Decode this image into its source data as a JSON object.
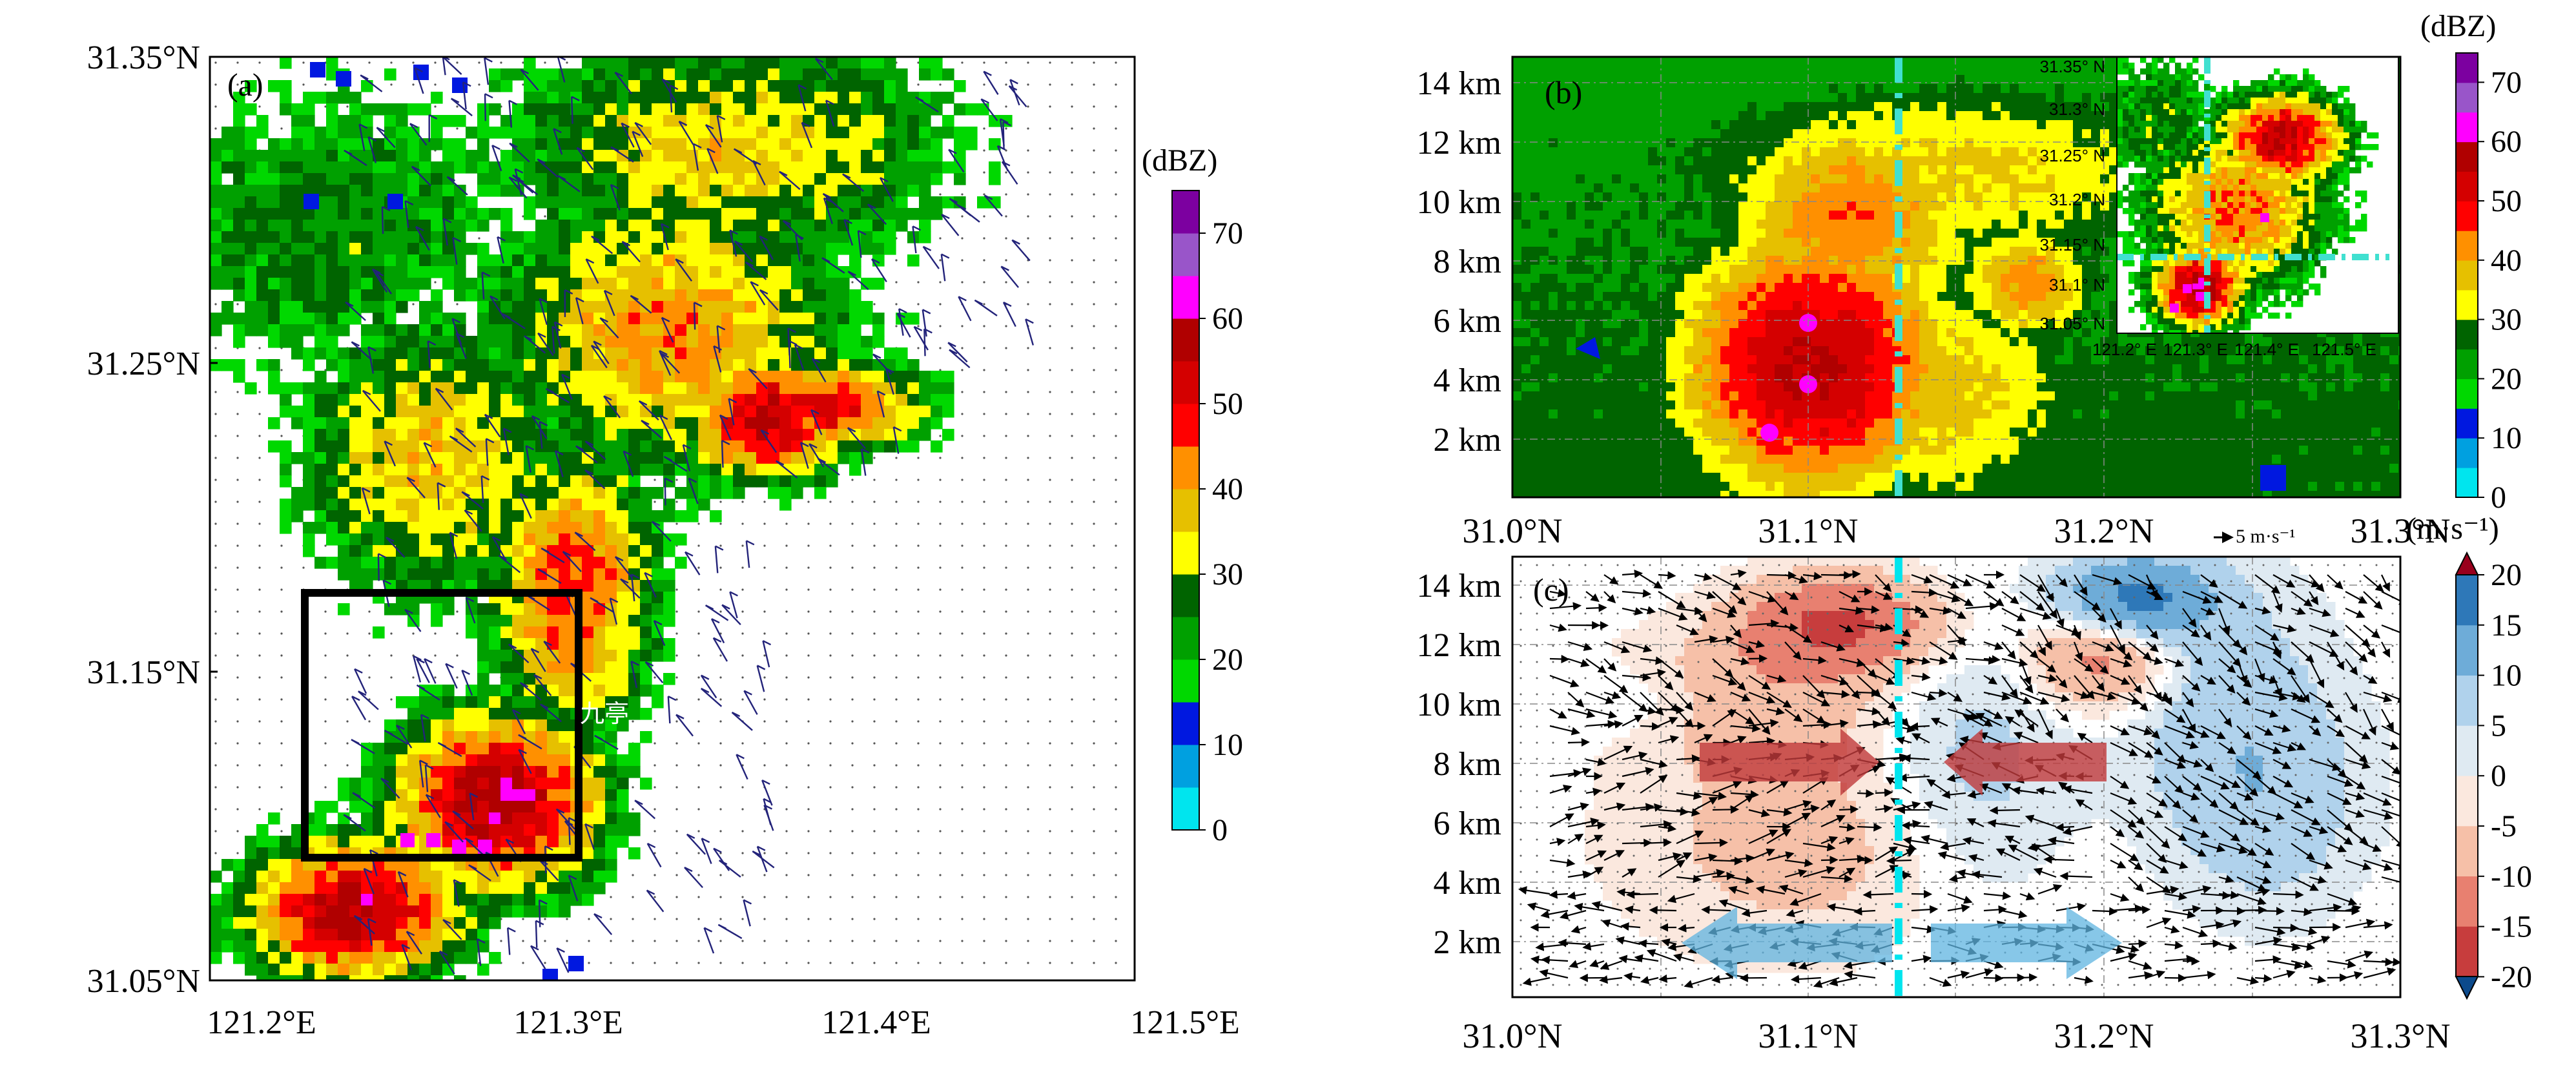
{
  "panel_a": {
    "label": "(a)",
    "place_label": "九亭",
    "x_ticks": [
      "121.2°E",
      "121.3°E",
      "121.4°E",
      "121.5°E"
    ],
    "y_ticks": [
      "31.05°N",
      "31.15°N",
      "31.25°N",
      "31.35°N"
    ]
  },
  "panel_b": {
    "label": "(b)",
    "y_ticks": [
      "2 km",
      "4 km",
      "6 km",
      "8 km",
      "10 km",
      "12 km",
      "14 km"
    ],
    "x_ticks": [
      "31.0°N",
      "31.1°N",
      "31.2°N",
      "31.3°N"
    ],
    "inset": {
      "y_ticks": [
        "31.05° N",
        "31.1° N",
        "31.15° N",
        "31.2° N",
        "31.25° N",
        "31.3° N",
        "31.35° N"
      ],
      "x_ticks": [
        "121.2° E",
        "121.3° E",
        "121.4° E",
        "121.5° E"
      ]
    }
  },
  "panel_c": {
    "label": "(c)",
    "y_ticks": [
      "2 km",
      "4 km",
      "6 km",
      "8 km",
      "10 km",
      "12 km",
      "14 km"
    ],
    "x_ticks": [
      "31.0°N",
      "31.1°N",
      "31.2°N",
      "31.3°N"
    ],
    "ref_vector_label": "5 m·s⁻¹"
  },
  "colorbar_dbz_a": {
    "unit": "(dBZ)",
    "ticks": [
      "0",
      "10",
      "20",
      "30",
      "40",
      "50",
      "60",
      "70"
    ],
    "colors": [
      "#00e5ee",
      "#00a0e0",
      "#0018e0",
      "#00d800",
      "#00a000",
      "#006400",
      "#ffff00",
      "#e6c000",
      "#ff9000",
      "#ff0000",
      "#d40000",
      "#b00000",
      "#ff00ff",
      "#9955c9",
      "#7c00a0"
    ]
  },
  "colorbar_dbz_b": {
    "unit": "(dBZ)",
    "ticks": [
      "0",
      "10",
      "20",
      "30",
      "40",
      "50",
      "60",
      "70"
    ]
  },
  "colorbar_w": {
    "unit": "(m·s⁻¹)",
    "ticks": [
      "20",
      "15",
      "10",
      "5",
      "0",
      "-5",
      "-10",
      "-15",
      "-20"
    ],
    "colors": [
      "#99001c",
      "#c73d3d",
      "#e88070",
      "#f6c0a8",
      "#fbe8de",
      "#dfeaf2",
      "#b0d2ec",
      "#6eacd8",
      "#2e78b8",
      "#0c4a8c"
    ]
  }
}
